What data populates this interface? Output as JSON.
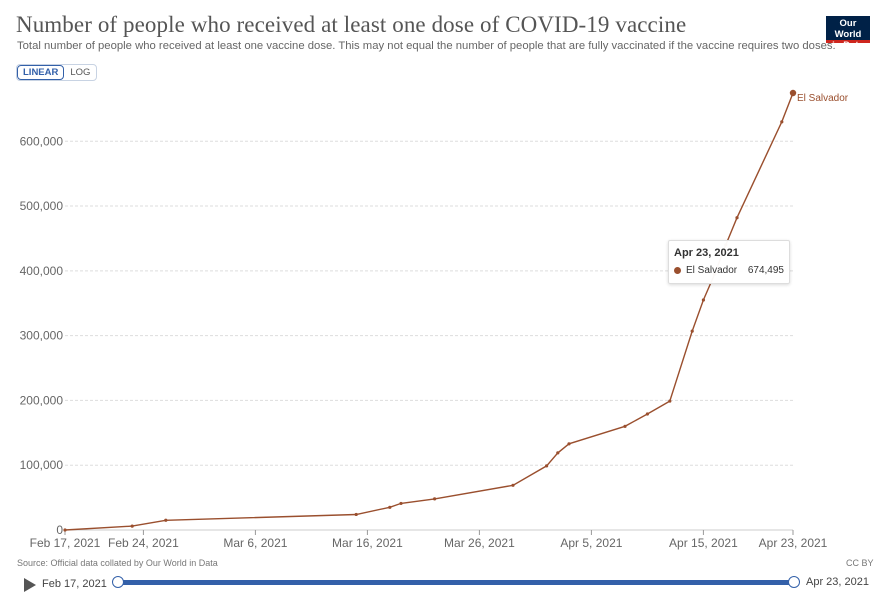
{
  "header": {
    "title": "Number of people who received at least one dose of COVID-19 vaccine",
    "subtitle": "Total number of people who received at least one vaccine dose. This may not equal the number of people that are fully vaccinated if the vaccine requires two doses.",
    "logo_line1": "Our World",
    "logo_line2": "in Data"
  },
  "controls": {
    "linear_label": "LINEAR",
    "log_label": "LOG",
    "active_scale": "LINEAR"
  },
  "tooltip": {
    "date": "Apr 23, 2021",
    "series": "El Salvador",
    "value": "674,495"
  },
  "footer": {
    "source": "Source: Official data collated by Our World in Data",
    "license": "CC BY",
    "timeline_start": "Feb 17, 2021",
    "timeline_end": "Apr 23, 2021"
  },
  "chart_data": {
    "type": "line",
    "title": "Number of people who received at least one dose of COVID-19 vaccine",
    "xlabel": "",
    "ylabel": "",
    "x_ticks": [
      "Feb 17, 2021",
      "Feb 24, 2021",
      "Mar 6, 2021",
      "Mar 16, 2021",
      "Mar 26, 2021",
      "Apr 5, 2021",
      "Apr 15, 2021",
      "Apr 23, 2021"
    ],
    "x_tick_dates": [
      "2021-02-17",
      "2021-02-24",
      "2021-03-06",
      "2021-03-16",
      "2021-03-26",
      "2021-04-05",
      "2021-04-15",
      "2021-04-23"
    ],
    "y_ticks": [
      0,
      100000,
      200000,
      300000,
      400000,
      500000,
      600000
    ],
    "y_tick_labels": [
      "0",
      "100,000",
      "200,000",
      "300,000",
      "400,000",
      "500,000",
      "600,000"
    ],
    "xlim": [
      "2021-02-17",
      "2021-04-23"
    ],
    "ylim": [
      0,
      674495
    ],
    "grid": true,
    "series_color": "#9a4f2e",
    "series": [
      {
        "name": "El Salvador",
        "points": [
          [
            "2021-02-17",
            0
          ],
          [
            "2021-02-23",
            6000
          ],
          [
            "2021-02-26",
            15000
          ],
          [
            "2021-03-15",
            24000
          ],
          [
            "2021-03-18",
            35000
          ],
          [
            "2021-03-19",
            41000
          ],
          [
            "2021-03-22",
            48000
          ],
          [
            "2021-03-29",
            69000
          ],
          [
            "2021-04-01",
            99000
          ],
          [
            "2021-04-02",
            119000
          ],
          [
            "2021-04-03",
            133000
          ],
          [
            "2021-04-08",
            160000
          ],
          [
            "2021-04-10",
            179000
          ],
          [
            "2021-04-12",
            199000
          ],
          [
            "2021-04-14",
            307000
          ],
          [
            "2021-04-15",
            355000
          ],
          [
            "2021-04-16",
            395000
          ],
          [
            "2021-04-17",
            440000
          ],
          [
            "2021-04-18",
            482000
          ],
          [
            "2021-04-22",
            630000
          ],
          [
            "2021-04-23",
            674495
          ]
        ]
      }
    ]
  }
}
